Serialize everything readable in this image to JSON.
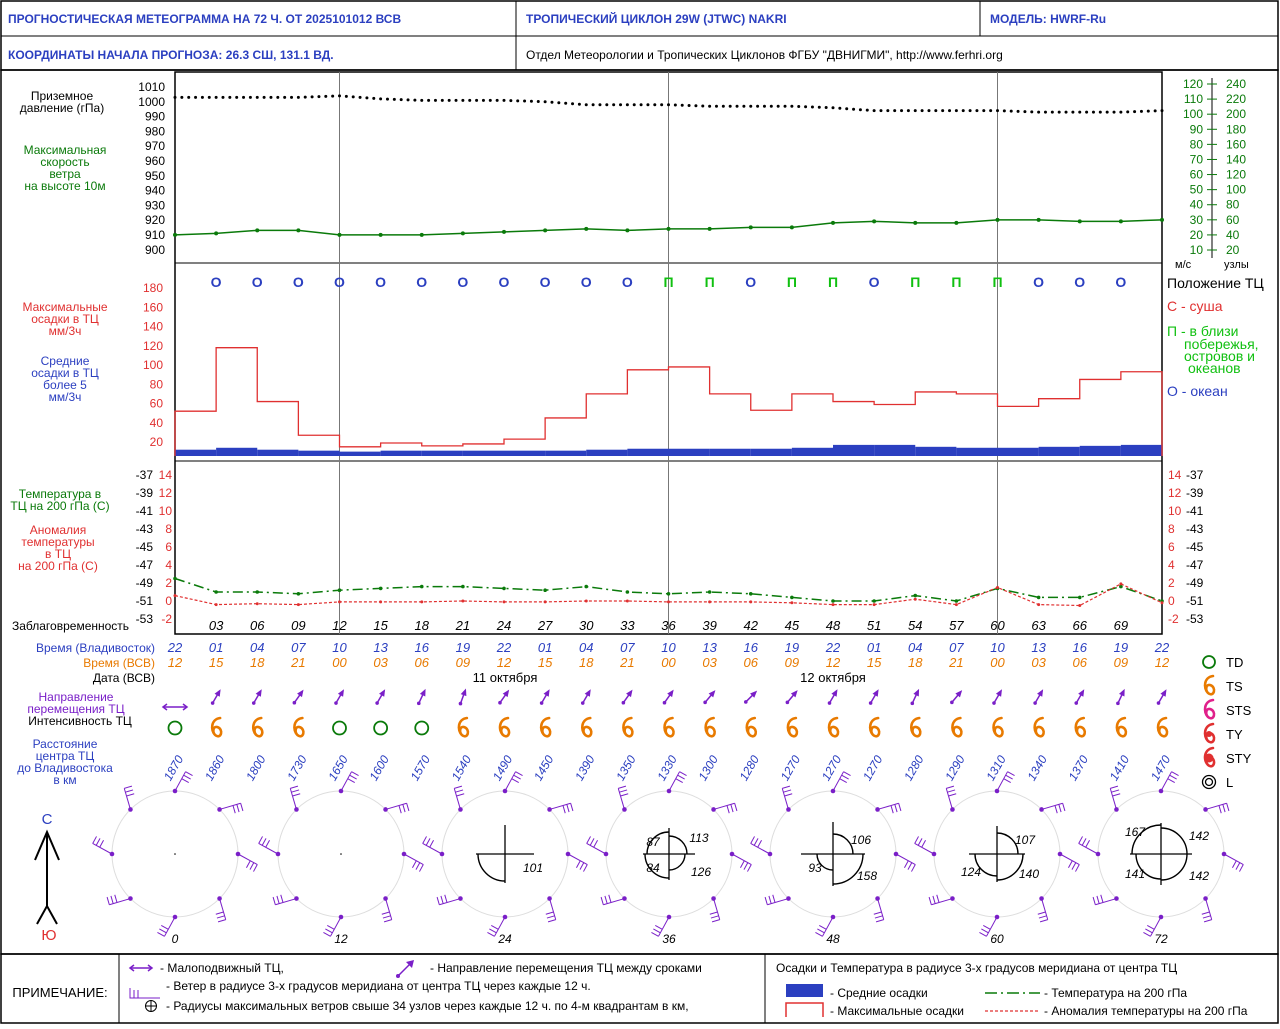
{
  "header": {
    "title": "ПРОГНОСТИЧЕСКАЯ МЕТЕОГРАММА НА 72 Ч. ОТ 2025101012 ВСВ",
    "cyclone": "ТРОПИЧЕСКИЙ ЦИКЛОН  29W  (JTWC)  NAKRI",
    "model": "МОДЕЛЬ:   HWRF-Ru",
    "coords": "КООРДИНАТЫ НАЧАЛА ПРОГНОЗА:  26.3  СШ,   131.1  ВД.",
    "org": "Отдел Метеорологии и Тропических Циклонов ФГБУ \"ДВНИГМИ\",  http://www.ferhri.org"
  },
  "labels": {
    "pressure": [
      "Приземное",
      "давление (гПа)"
    ],
    "wind": [
      "Максимальная",
      "скорость",
      "ветра",
      "на высоте 10м"
    ],
    "maxprec": [
      "Максимальные",
      "осадки в ТЦ",
      "мм/3ч"
    ],
    "avgprec": [
      "Средние",
      "осадки в ТЦ",
      "более 5",
      "мм/3ч"
    ],
    "temp": [
      "Температура в",
      "ТЦ на 200 гПа (С)"
    ],
    "anom": [
      "Аномалия",
      "температуры",
      "в ТЦ",
      "на 200 гПа (С)"
    ],
    "lead": "Заблаговременность",
    "time_vl": "Время (Владивосток)",
    "time_utc": "Время (ВСВ)",
    "date_utc": "Дата (ВСВ)",
    "direction": [
      "Направление",
      "перемещения ТЦ"
    ],
    "intensity": "Интенсивность ТЦ",
    "distance": [
      "Расстояние",
      "центра ТЦ",
      "до Владивостока",
      "в км"
    ],
    "north": "С",
    "south": "Ю",
    "ms": "м/с",
    "knots": "узлы"
  },
  "position_legend": {
    "title": "Положение ТЦ",
    "land": "С - суша",
    "coast": [
      "П - в близи",
      "побережья,",
      "островов и",
      "океанов"
    ],
    "ocean": "О - океан"
  },
  "intensity_legend": [
    "TD",
    "TS",
    "STS",
    "TY",
    "STY",
    "L"
  ],
  "dates": [
    "11 октября",
    "12 октября"
  ],
  "chart_data": {
    "type": "line",
    "lead_hours": [
      0,
      3,
      6,
      9,
      12,
      15,
      18,
      21,
      24,
      27,
      30,
      33,
      36,
      39,
      42,
      45,
      48,
      51,
      54,
      57,
      60,
      63,
      66,
      69,
      72
    ],
    "lead_labels": [
      "03",
      "06",
      "09",
      "12",
      "15",
      "18",
      "21",
      "24",
      "27",
      "30",
      "33",
      "36",
      "39",
      "42",
      "45",
      "48",
      "51",
      "54",
      "57",
      "60",
      "63",
      "66",
      "69"
    ],
    "time_vl": [
      "22",
      "01",
      "04",
      "07",
      "10",
      "13",
      "16",
      "19",
      "22",
      "01",
      "04",
      "07",
      "10",
      "13",
      "16",
      "19",
      "22",
      "01",
      "04",
      "07",
      "10",
      "13",
      "16",
      "19",
      "22"
    ],
    "time_utc": [
      "12",
      "15",
      "18",
      "21",
      "00",
      "03",
      "06",
      "09",
      "12",
      "15",
      "18",
      "21",
      "00",
      "03",
      "06",
      "09",
      "12",
      "15",
      "18",
      "21",
      "00",
      "03",
      "06",
      "09",
      "12"
    ],
    "pressure_hpa": [
      1003,
      1003,
      1003,
      1003,
      1004,
      1002,
      1001,
      1001,
      1001,
      1000,
      998,
      998,
      998,
      997,
      997,
      997,
      996,
      994,
      994,
      994,
      994,
      993,
      993,
      993,
      994
    ],
    "pressure_axis": [
      900,
      910,
      920,
      930,
      940,
      950,
      960,
      970,
      980,
      990,
      1000,
      1010
    ],
    "wind_ms": [
      20,
      21,
      23,
      23,
      20,
      20,
      20,
      21,
      22,
      23,
      24,
      23,
      24,
      24,
      25,
      25,
      28,
      29,
      28,
      28,
      30,
      30,
      29,
      29,
      30
    ],
    "wind_ms_axis": [
      10,
      20,
      30,
      40,
      50,
      60,
      70,
      80,
      90,
      100,
      110,
      120
    ],
    "wind_kt_axis": [
      20,
      40,
      60,
      80,
      100,
      120,
      140,
      160,
      180,
      200,
      220,
      240
    ],
    "position": [
      "О",
      "О",
      "О",
      "О",
      "О",
      "О",
      "О",
      "О",
      "О",
      "О",
      "О",
      "П",
      "П",
      "О",
      "П",
      "П",
      "О",
      "П",
      "П",
      "П",
      "О",
      "О",
      "О"
    ],
    "max_precip_mm3h": [
      52,
      118,
      62,
      27,
      15,
      19,
      16,
      18,
      23,
      45,
      70,
      95,
      98,
      70,
      53,
      70,
      62,
      59,
      72,
      70,
      57,
      65,
      85,
      93
    ],
    "avg_precip_mm3h": [
      12,
      14,
      12,
      11,
      10,
      11,
      11,
      11,
      11,
      11,
      12,
      13,
      13,
      13,
      13,
      14,
      17,
      17,
      15,
      14,
      14,
      15,
      16,
      17
    ],
    "precip_axis": [
      20,
      40,
      60,
      80,
      100,
      120,
      140,
      160,
      180
    ],
    "temp200_c": [
      -48.5,
      -50,
      -50,
      -50.2,
      -49.8,
      -49.6,
      -49.4,
      -49.4,
      -49.6,
      -49.8,
      -49.4,
      -50,
      -50.2,
      -50,
      -50.2,
      -50.6,
      -51,
      -51,
      -50.4,
      -51,
      -49.6,
      -50.6,
      -50.6,
      -49.4,
      -51
    ],
    "anomaly200_c": [
      0.6,
      -0.4,
      -0.3,
      -0.4,
      -0.1,
      -0.1,
      -0.1,
      0,
      -0.1,
      -0.1,
      0,
      0,
      -0.1,
      -0.1,
      -0.1,
      -0.2,
      -0.4,
      -0.4,
      0.2,
      -0.4,
      1.5,
      -0.4,
      -0.5,
      1.9,
      -0.2
    ],
    "temp_axis": [
      -53,
      -51,
      -49,
      -47,
      -45,
      -43,
      -41,
      -39,
      -37
    ],
    "anom_axis": [
      -2,
      0,
      2,
      4,
      6,
      8,
      10,
      12,
      14
    ],
    "intensity": [
      "TD",
      "TS",
      "TS",
      "TS",
      "TD",
      "TD",
      "TD",
      "TS",
      "TS",
      "TS",
      "TS",
      "TS",
      "TS",
      "TS",
      "TS",
      "TS",
      "TS",
      "TS",
      "TS",
      "TS",
      "TS",
      "TS",
      "TS",
      "TS",
      "TS"
    ],
    "distance_km": [
      1870,
      1860,
      1800,
      1730,
      1650,
      1600,
      1570,
      1540,
      1490,
      1450,
      1390,
      1350,
      1330,
      1300,
      1280,
      1270,
      1270,
      1270,
      1280,
      1290,
      1310,
      1340,
      1370,
      1410,
      1470
    ],
    "wind_circle_hours": [
      "0",
      "12",
      "24",
      "36",
      "48",
      "60",
      "72"
    ],
    "radii_values": [
      [],
      [],
      [
        "101"
      ],
      [
        "87",
        "113",
        "84",
        "126"
      ],
      [
        "106",
        "93",
        "158"
      ],
      [
        "107",
        "124",
        "140"
      ],
      [
        "167",
        "142",
        "141",
        "142"
      ]
    ]
  },
  "notes": {
    "title": "ПРИМЕЧАНИЕ:",
    "stationary": "- Малоподвижный ТЦ,",
    "direction": "- Направление перемещения ТЦ между сроками",
    "wind3": "- Ветер в радиусе 3-х градусов меридиана от центра ТЦ через каждые 12 ч.",
    "radii": "- Радиусы максимальных ветров свыше 34 узлов через каждые 12 ч. по 4-м квадрантам в км,",
    "legend_title": "Осадки и Температура в радиусе 3-х градусов меридиана от центра ТЦ",
    "avg": "- Средние осадки",
    "max": "- Максимальные осадки",
    "temp": "- Температура на 200 гПа",
    "anom": "- Аномалия температуры на 200 гПа"
  },
  "colors": {
    "blue": "#2b3fc0",
    "green": "#0a7a0a",
    "red": "#e03030",
    "orange": "#e87a00",
    "purple": "#7a1fc8",
    "bright_green": "#10c010"
  }
}
